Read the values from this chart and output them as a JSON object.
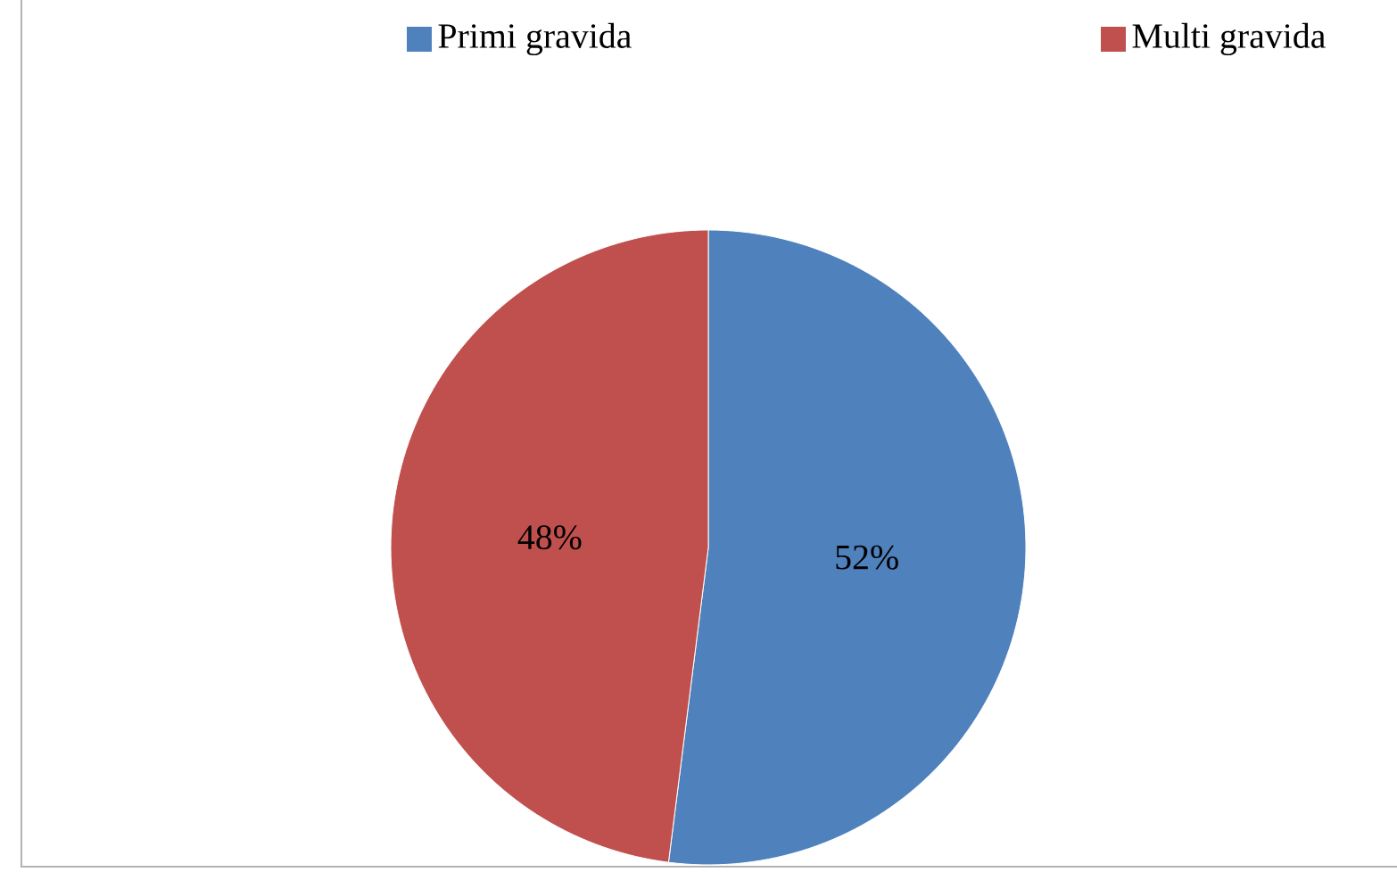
{
  "chart_data": {
    "type": "pie",
    "categories": [
      "Primi gravida",
      "Multi gravida"
    ],
    "values": [
      52,
      48
    ],
    "colors": [
      "#4f81bd",
      "#c0504d"
    ],
    "value_labels": [
      "52%",
      "48%"
    ],
    "legend": "top"
  }
}
